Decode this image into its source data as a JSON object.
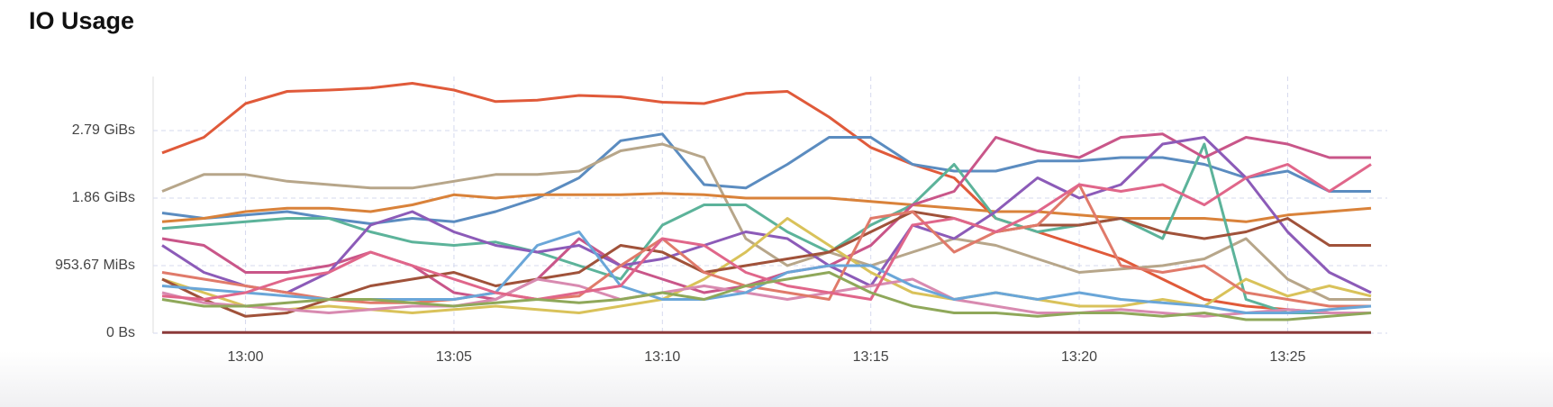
{
  "chart_data": {
    "type": "line",
    "title": "IO Usage",
    "x": [
      "12:58",
      "12:59",
      "13:00",
      "13:01",
      "13:02",
      "13:03",
      "13:04",
      "13:05",
      "13:06",
      "13:07",
      "13:08",
      "13:09",
      "13:10",
      "13:11",
      "13:12",
      "13:13",
      "13:14",
      "13:15",
      "13:16",
      "13:17",
      "13:18",
      "13:19",
      "13:20",
      "13:21",
      "13:22",
      "13:23",
      "13:24",
      "13:25",
      "13:26",
      "13:27"
    ],
    "xlim": [
      "12:58",
      "13:27"
    ],
    "xticks": [
      "13:00",
      "13:05",
      "13:10",
      "13:15",
      "13:20",
      "13:25"
    ],
    "ylim": [
      0,
      3800000000.0
    ],
    "yticks": [
      {
        "value": 0,
        "label": "0 Bs"
      },
      {
        "value": 1000000000.0,
        "label": "953.67 MiBs"
      },
      {
        "value": 2000000000.0,
        "label": "1.86 GiBs"
      },
      {
        "value": 3000000000.0,
        "label": "2.79 GiBs"
      }
    ],
    "grid": true,
    "series": [
      {
        "color": "#e05a3a",
        "values": [
          2670000000.0,
          2900000000.0,
          3400000000.0,
          3580000000.0,
          3600000000.0,
          3630000000.0,
          3700000000.0,
          3600000000.0,
          3430000000.0,
          3450000000.0,
          3520000000.0,
          3500000000.0,
          3420000000.0,
          3400000000.0,
          3550000000.0,
          3580000000.0,
          3200000000.0,
          2750000000.0,
          2500000000.0,
          2300000000.0,
          1700000000.0,
          1500000000.0,
          1300000000.0,
          1100000000.0,
          800000000.0,
          500000000.0,
          400000000.0,
          350000000.0,
          300000000.0,
          300000000.0
        ]
      },
      {
        "color": "#5b8cc0",
        "values": [
          1780000000.0,
          1700000000.0,
          1750000000.0,
          1800000000.0,
          1700000000.0,
          1620000000.0,
          1700000000.0,
          1650000000.0,
          1800000000.0,
          2000000000.0,
          2300000000.0,
          2850000000.0,
          2950000000.0,
          2200000000.0,
          2150000000.0,
          2500000000.0,
          2900000000.0,
          2900000000.0,
          2500000000.0,
          2400000000.0,
          2400000000.0,
          2550000000.0,
          2550000000.0,
          2600000000.0,
          2600000000.0,
          2500000000.0,
          2300000000.0,
          2400000000.0,
          2100000000.0,
          2100000000.0
        ]
      },
      {
        "color": "#b7a68a",
        "values": [
          2100000000.0,
          2350000000.0,
          2350000000.0,
          2250000000.0,
          2200000000.0,
          2150000000.0,
          2150000000.0,
          2250000000.0,
          2350000000.0,
          2350000000.0,
          2400000000.0,
          2700000000.0,
          2800000000.0,
          2600000000.0,
          1400000000.0,
          1000000000.0,
          1200000000.0,
          1000000000.0,
          1200000000.0,
          1400000000.0,
          1300000000.0,
          1100000000.0,
          900000000.0,
          950000000.0,
          1000000000.0,
          1100000000.0,
          1400000000.0,
          800000000.0,
          500000000.0,
          500000000.0
        ]
      },
      {
        "color": "#d9823a",
        "values": [
          1650000000.0,
          1700000000.0,
          1800000000.0,
          1850000000.0,
          1850000000.0,
          1800000000.0,
          1900000000.0,
          2050000000.0,
          2000000000.0,
          2050000000.0,
          2050000000.0,
          2050000000.0,
          2070000000.0,
          2050000000.0,
          2000000000.0,
          2000000000.0,
          2000000000.0,
          1950000000.0,
          1900000000.0,
          1850000000.0,
          1800000000.0,
          1800000000.0,
          1750000000.0,
          1700000000.0,
          1700000000.0,
          1700000000.0,
          1650000000.0,
          1750000000.0,
          1800000000.0,
          1850000000.0
        ]
      },
      {
        "color": "#5cb39a",
        "values": [
          1550000000.0,
          1600000000.0,
          1650000000.0,
          1700000000.0,
          1700000000.0,
          1500000000.0,
          1350000000.0,
          1300000000.0,
          1350000000.0,
          1200000000.0,
          1000000000.0,
          800000000.0,
          1600000000.0,
          1900000000.0,
          1900000000.0,
          1500000000.0,
          1200000000.0,
          1600000000.0,
          1900000000.0,
          2500000000.0,
          1700000000.0,
          1500000000.0,
          1600000000.0,
          1700000000.0,
          1400000000.0,
          2800000000.0,
          500000000.0,
          300000000.0,
          300000000.0,
          300000000.0
        ]
      },
      {
        "color": "#c95689",
        "values": [
          1400000000.0,
          1300000000.0,
          900000000.0,
          900000000.0,
          1000000000.0,
          1200000000.0,
          1000000000.0,
          600000000.0,
          500000000.0,
          800000000.0,
          1400000000.0,
          1000000000.0,
          800000000.0,
          600000000.0,
          700000000.0,
          900000000.0,
          1000000000.0,
          1300000000.0,
          1900000000.0,
          2100000000.0,
          2900000000.0,
          2700000000.0,
          2600000000.0,
          2900000000.0,
          2950000000.0,
          2600000000.0,
          2900000000.0,
          2800000000.0,
          2600000000.0,
          2600000000.0
        ]
      },
      {
        "color": "#8c5bb8",
        "values": [
          1300000000.0,
          900000000.0,
          700000000.0,
          600000000.0,
          900000000.0,
          1600000000.0,
          1800000000.0,
          1500000000.0,
          1300000000.0,
          1200000000.0,
          1300000000.0,
          1000000000.0,
          1100000000.0,
          1300000000.0,
          1500000000.0,
          1400000000.0,
          1000000000.0,
          700000000.0,
          1600000000.0,
          1400000000.0,
          1800000000.0,
          2300000000.0,
          2000000000.0,
          2200000000.0,
          2800000000.0,
          2900000000.0,
          2300000000.0,
          1500000000.0,
          900000000.0,
          600000000.0
        ]
      },
      {
        "color": "#d9c25a",
        "values": [
          800000000.0,
          600000000.0,
          400000000.0,
          350000000.0,
          400000000.0,
          350000000.0,
          300000000.0,
          350000000.0,
          400000000.0,
          350000000.0,
          300000000.0,
          400000000.0,
          500000000.0,
          800000000.0,
          1200000000.0,
          1700000000.0,
          1300000000.0,
          900000000.0,
          600000000.0,
          500000000.0,
          600000000.0,
          500000000.0,
          400000000.0,
          400000000.0,
          500000000.0,
          400000000.0,
          800000000.0,
          550000000.0,
          700000000.0,
          550000000.0
        ]
      },
      {
        "color": "#a0523a",
        "values": [
          800000000.0,
          500000000.0,
          250000000.0,
          300000000.0,
          500000000.0,
          700000000.0,
          800000000.0,
          900000000.0,
          700000000.0,
          800000000.0,
          900000000.0,
          1300000000.0,
          1200000000.0,
          900000000.0,
          1000000000.0,
          1100000000.0,
          1200000000.0,
          1500000000.0,
          1800000000.0,
          1700000000.0,
          1500000000.0,
          1600000000.0,
          1600000000.0,
          1700000000.0,
          1500000000.0,
          1400000000.0,
          1500000000.0,
          1700000000.0,
          1300000000.0,
          1300000000.0
        ]
      },
      {
        "color": "#d88ab0",
        "values": [
          600000000.0,
          450000000.0,
          400000000.0,
          350000000.0,
          300000000.0,
          350000000.0,
          400000000.0,
          400000000.0,
          500000000.0,
          800000000.0,
          700000000.0,
          500000000.0,
          600000000.0,
          700000000.0,
          600000000.0,
          500000000.0,
          600000000.0,
          700000000.0,
          800000000.0,
          500000000.0,
          400000000.0,
          300000000.0,
          300000000.0,
          350000000.0,
          300000000.0,
          250000000.0,
          300000000.0,
          350000000.0,
          300000000.0,
          300000000.0
        ]
      },
      {
        "color": "#e07a6a",
        "values": [
          900000000.0,
          800000000.0,
          700000000.0,
          600000000.0,
          500000000.0,
          450000000.0,
          450000000.0,
          500000000.0,
          600000000.0,
          500000000.0,
          550000000.0,
          1000000000.0,
          1400000000.0,
          900000000.0,
          700000000.0,
          600000000.0,
          500000000.0,
          1700000000.0,
          1800000000.0,
          1200000000.0,
          1500000000.0,
          1600000000.0,
          2200000000.0,
          1000000000.0,
          900000000.0,
          1000000000.0,
          600000000.0,
          500000000.0,
          400000000.0,
          400000000.0
        ]
      },
      {
        "color": "#6aa6d8",
        "values": [
          700000000.0,
          650000000.0,
          600000000.0,
          550000000.0,
          500000000.0,
          500000000.0,
          500000000.0,
          500000000.0,
          600000000.0,
          1300000000.0,
          1500000000.0,
          700000000.0,
          500000000.0,
          500000000.0,
          600000000.0,
          900000000.0,
          1000000000.0,
          1000000000.0,
          700000000.0,
          500000000.0,
          600000000.0,
          500000000.0,
          600000000.0,
          500000000.0,
          450000000.0,
          400000000.0,
          300000000.0,
          300000000.0,
          350000000.0,
          400000000.0
        ]
      },
      {
        "color": "#8b3a3a",
        "values": [
          10000000.0,
          10000000.0,
          10000000.0,
          10000000.0,
          10000000.0,
          10000000.0,
          10000000.0,
          10000000.0,
          10000000.0,
          10000000.0,
          10000000.0,
          10000000.0,
          10000000.0,
          10000000.0,
          10000000.0,
          10000000.0,
          10000000.0,
          10000000.0,
          10000000.0,
          10000000.0,
          10000000.0,
          10000000.0,
          10000000.0,
          10000000.0,
          10000000.0,
          10000000.0,
          10000000.0,
          10000000.0,
          10000000.0,
          10000000.0
        ]
      },
      {
        "color": "#e0668a",
        "values": [
          550000000.0,
          500000000.0,
          600000000.0,
          800000000.0,
          900000000.0,
          1200000000.0,
          1000000000.0,
          800000000.0,
          600000000.0,
          500000000.0,
          600000000.0,
          700000000.0,
          1400000000.0,
          1300000000.0,
          900000000.0,
          700000000.0,
          600000000.0,
          500000000.0,
          1600000000.0,
          1700000000.0,
          1500000000.0,
          1800000000.0,
          2200000000.0,
          2100000000.0,
          2200000000.0,
          1900000000.0,
          2300000000.0,
          2500000000.0,
          2100000000.0,
          2500000000.0
        ]
      },
      {
        "color": "#8fa85a",
        "values": [
          500000000.0,
          400000000.0,
          400000000.0,
          450000000.0,
          500000000.0,
          500000000.0,
          450000000.0,
          400000000.0,
          450000000.0,
          500000000.0,
          450000000.0,
          500000000.0,
          600000000.0,
          500000000.0,
          700000000.0,
          800000000.0,
          900000000.0,
          600000000.0,
          400000000.0,
          300000000.0,
          300000000.0,
          250000000.0,
          300000000.0,
          300000000.0,
          250000000.0,
          300000000.0,
          200000000.0,
          200000000.0,
          250000000.0,
          300000000.0
        ]
      }
    ]
  }
}
